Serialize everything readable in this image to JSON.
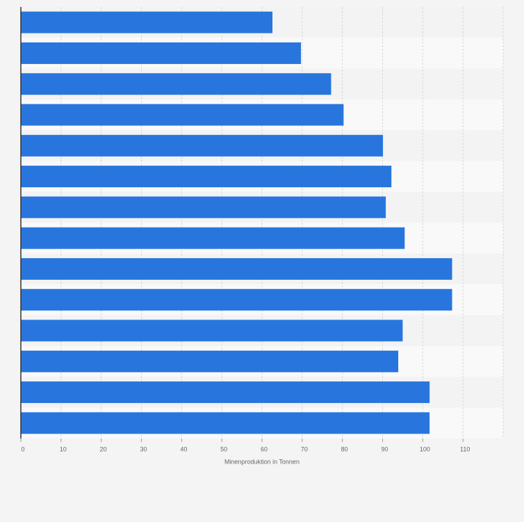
{
  "chart_data": {
    "type": "bar",
    "orientation": "horizontal",
    "categories": [
      null,
      null,
      null,
      null,
      null,
      null,
      null,
      null,
      null,
      null,
      null,
      null,
      null,
      null
    ],
    "values": [
      62.6,
      69.7,
      77.2,
      80.3,
      90.1,
      92.2,
      90.8,
      95.5,
      107.3,
      107.3,
      95.0,
      93.9,
      101.7,
      101.7
    ],
    "color": "#2876dd",
    "xlabel": "Minenproduktion in Tonnen",
    "xlim": [
      0,
      120
    ],
    "xticks": [
      0,
      10,
      20,
      30,
      40,
      50,
      60,
      70,
      80,
      90,
      100,
      110
    ],
    "grid": true
  }
}
